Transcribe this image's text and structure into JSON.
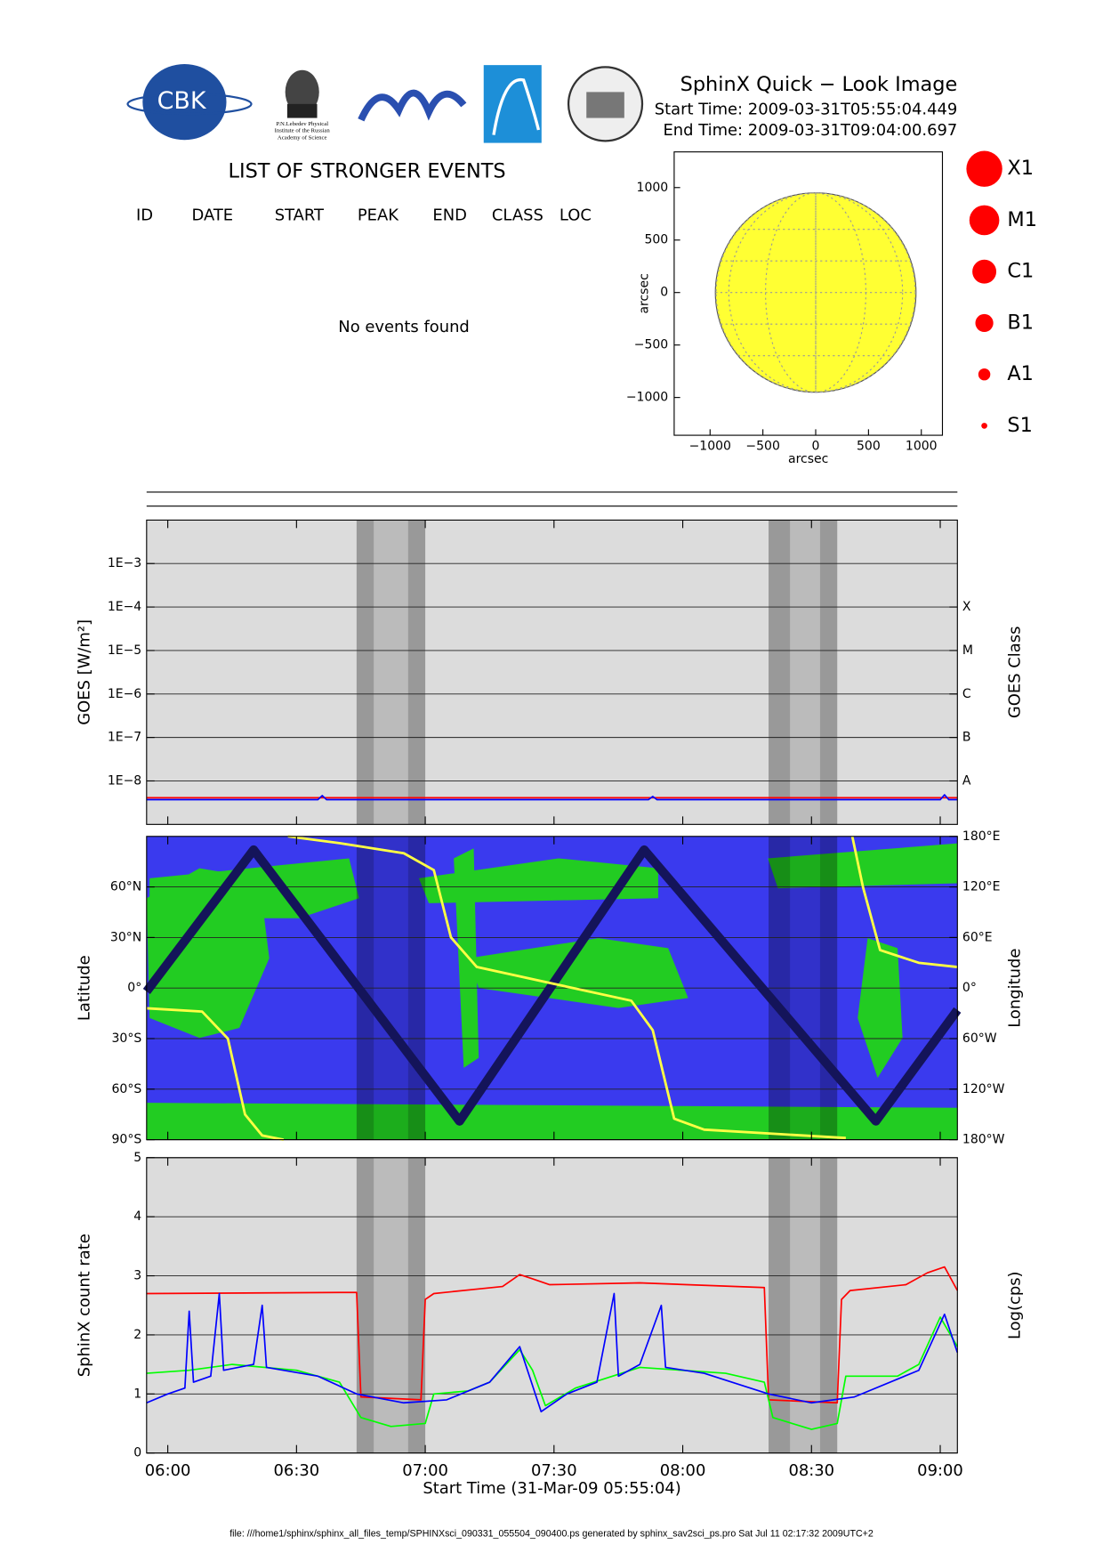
{
  "header": {
    "title": "SphinX Quick − Look Image",
    "start_time": "Start Time: 2009-03-31T05:55:04.449",
    "end_time": "End Time: 2009-03-31T09:04:00.697"
  },
  "logos": {
    "cbk": "CBK",
    "lebedev": [
      "P.N.Lebedev Physical",
      "Institute of the Russian",
      "Academy of Science"
    ]
  },
  "events": {
    "title": "LIST OF STRONGER EVENTS",
    "columns": [
      "ID",
      "DATE",
      "START",
      "PEAK",
      "END",
      "CLASS",
      "LOC"
    ],
    "message": "No events found"
  },
  "bands": [
    {
      "start": "06:44",
      "end": "06:48",
      "shade": "dark"
    },
    {
      "start": "06:48",
      "end": "06:56",
      "shade": "light"
    },
    {
      "start": "06:56",
      "end": "07:00",
      "shade": "dark"
    },
    {
      "start": "08:20",
      "end": "08:25",
      "shade": "dark"
    },
    {
      "start": "08:25",
      "end": "08:32",
      "shade": "light"
    },
    {
      "start": "08:32",
      "end": "08:36",
      "shade": "dark"
    }
  ],
  "chart_data": [
    {
      "type": "disk",
      "xlabel": "arcsec",
      "ylabel": "arcsec",
      "radius": 950,
      "color": "#ffff33",
      "xlim": [
        -1340,
        1200
      ],
      "ylim": [
        -1360,
        1340
      ],
      "xticks": [
        {
          "value": -1000,
          "label": "−1000"
        },
        {
          "value": -500,
          "label": "−500"
        },
        0,
        500,
        1000
      ],
      "yticks": [
        {
          "value": -1000,
          "label": "−1000"
        },
        {
          "value": -500,
          "label": "−500"
        },
        0,
        500,
        1000
      ],
      "legend": {
        "classes": [
          "X1",
          "M1",
          "C1",
          "B1",
          "A1",
          "S1"
        ],
        "color": "#ff0000"
      }
    },
    {
      "type": "line",
      "ylabel": "GOES [W/m²]",
      "y2label": "GOES Class",
      "log": true,
      "grid": true,
      "background": "#dcdcdc",
      "xlim": [
        "05:55:04",
        "09:04:00"
      ],
      "ylim": [
        1e-09,
        0.01
      ],
      "y2lim": [
        1e-09,
        0.01
      ],
      "yticks": [
        {
          "value": 0.001,
          "label": "1E−3"
        },
        {
          "value": 0.0001,
          "label": "1E−4"
        },
        {
          "value": 1e-05,
          "label": "1E−5"
        },
        {
          "value": 1e-06,
          "label": "1E−6"
        },
        {
          "value": 1e-07,
          "label": "1E−7"
        },
        {
          "value": 1e-08,
          "label": "1E−8"
        }
      ],
      "y2ticks": [
        {
          "value": 0.0001,
          "label": "X"
        },
        {
          "value": 1e-05,
          "label": "M"
        },
        {
          "value": 1e-06,
          "label": "C"
        },
        {
          "value": 1e-07,
          "label": "B"
        },
        {
          "value": 1e-08,
          "label": "A"
        }
      ],
      "series": [
        {
          "color": "#ff0000",
          "x": [
            "05:55:04",
            "09:04:00"
          ],
          "values": [
            4.1e-09,
            4.1e-09
          ]
        },
        {
          "color": "#0000ff",
          "x": [
            "05:55:04",
            "06:35",
            "06:36",
            "06:37",
            "07:52",
            "07:53",
            "07:54",
            "09:00",
            "09:01",
            "09:02",
            "09:04:00"
          ],
          "values": [
            3.7e-09,
            3.7e-09,
            4.6e-09,
            3.7e-09,
            3.7e-09,
            4.4e-09,
            3.7e-09,
            3.7e-09,
            4.8e-09,
            3.7e-09,
            3.7e-09
          ]
        }
      ]
    },
    {
      "type": "line",
      "ylabel": "Latitude",
      "y2label": "Longitude",
      "grid": true,
      "background": "#3a3aee",
      "xlim": [
        "05:55:04",
        "09:04:00"
      ],
      "ylim": [
        -90,
        90
      ],
      "y2lim": [
        -180,
        180
      ],
      "yticks": [
        {
          "value": -90,
          "label": "90°S"
        },
        {
          "value": -60,
          "label": "60°S"
        },
        {
          "value": -30,
          "label": "30°S"
        },
        {
          "value": 0,
          "label": "0°"
        },
        {
          "value": 30,
          "label": "30°N"
        },
        {
          "value": 60,
          "label": "60°N"
        }
      ],
      "y2ticks": [
        {
          "value": -180,
          "label": "180°W"
        },
        {
          "value": -120,
          "label": "120°W"
        },
        {
          "value": -60,
          "label": "60°W"
        },
        {
          "value": 0,
          "label": "0°"
        },
        {
          "value": 60,
          "label": "60°E"
        },
        {
          "value": 120,
          "label": "120°E"
        },
        {
          "value": 180,
          "label": "180°E"
        }
      ],
      "series": [
        {
          "color": "#14145a",
          "x": [
            "05:55:04",
            "06:20",
            "07:08",
            "07:51",
            "08:45",
            "09:04:00"
          ],
          "values": [
            -2,
            82,
            -79,
            82,
            -79,
            -13
          ]
        },
        {
          "color": "#ffff44",
          "axis": "y2",
          "x": [
            "05:55:04",
            "06:08",
            "06:14",
            "06:18",
            "06:22",
            "06:27",
            "06:27:30",
            "06:28",
            "06:40",
            "06:55",
            "07:02",
            "07:06",
            "07:12",
            "07:30",
            "07:48",
            "07:53",
            "07:58",
            "08:05",
            "08:38",
            "08:39",
            "08:39:30",
            "08:42",
            "08:46",
            "08:55",
            "09:04:00"
          ],
          "values": [
            -24,
            -28,
            -60,
            -150,
            -175,
            -180,
            null,
            180,
            172,
            160,
            140,
            60,
            25,
            5,
            -15,
            -50,
            -155,
            -168,
            -178,
            null,
            180,
            120,
            45,
            30,
            25
          ]
        }
      ]
    },
    {
      "type": "line",
      "ylabel": "SphinX count rate",
      "y2label": "Log(cps)",
      "xlabel": "Start Time (31-Mar-09 05:55:04)",
      "grid": true,
      "background": "#dcdcdc",
      "xlim": [
        "05:55:04",
        "09:04:00"
      ],
      "ylim": [
        0,
        5
      ],
      "yticks": [
        0,
        1,
        2,
        3,
        4,
        5
      ],
      "xticks": [
        "06:00",
        "06:30",
        "07:00",
        "07:30",
        "08:00",
        "08:30",
        "09:00"
      ],
      "series": [
        {
          "color": "#ff0000",
          "x": [
            "05:55:04",
            "06:44",
            "06:45",
            "06:59",
            "07:00",
            "07:02",
            "07:18",
            "07:22",
            "07:25",
            "07:29",
            "07:50",
            "08:19",
            "08:20",
            "08:36",
            "08:37",
            "08:39",
            "08:52",
            "08:57",
            "09:01",
            "09:04:00"
          ],
          "values": [
            2.7,
            2.72,
            0.95,
            0.9,
            2.6,
            2.7,
            2.82,
            3.02,
            2.95,
            2.85,
            2.88,
            2.8,
            0.9,
            0.85,
            2.6,
            2.75,
            2.85,
            3.05,
            3.15,
            2.75
          ]
        },
        {
          "color": "#00ff00",
          "x": [
            "05:55:04",
            "06:05",
            "06:15",
            "06:30",
            "06:40",
            "06:45",
            "06:52",
            "07:00",
            "07:02",
            "07:10",
            "07:15",
            "07:22",
            "07:25",
            "07:28",
            "07:35",
            "07:50",
            "08:10",
            "08:19",
            "08:21",
            "08:30",
            "08:36",
            "08:38",
            "08:50",
            "08:55",
            "09:00",
            "09:04:00"
          ],
          "values": [
            1.35,
            1.4,
            1.5,
            1.4,
            1.2,
            0.6,
            0.45,
            0.5,
            1.0,
            1.05,
            1.2,
            1.75,
            1.4,
            0.8,
            1.1,
            1.45,
            1.35,
            1.2,
            0.6,
            0.4,
            0.5,
            1.3,
            1.3,
            1.5,
            2.3,
            1.8
          ]
        },
        {
          "color": "#0000ff",
          "x": [
            "05:55:04",
            "06:00",
            "06:04",
            "06:05",
            "06:06",
            "06:10",
            "06:12",
            "06:13",
            "06:20",
            "06:22",
            "06:23",
            "06:35",
            "06:44",
            "06:55",
            "07:05",
            "07:15",
            "07:22",
            "07:27",
            "07:33",
            "07:40",
            "07:44",
            "07:45",
            "07:50",
            "07:55",
            "07:56",
            "08:05",
            "08:20",
            "08:30",
            "08:40",
            "08:55",
            "09:01",
            "09:04:00"
          ],
          "values": [
            0.85,
            1.0,
            1.1,
            2.4,
            1.2,
            1.3,
            2.7,
            1.4,
            1.5,
            2.5,
            1.45,
            1.3,
            1.0,
            0.85,
            0.9,
            1.2,
            1.8,
            0.7,
            1.0,
            1.2,
            2.7,
            1.3,
            1.5,
            2.5,
            1.45,
            1.35,
            1.0,
            0.85,
            0.95,
            1.4,
            2.35,
            1.7
          ]
        }
      ]
    }
  ],
  "footer": "file: ///home1/sphinx/sphinx_all_files_temp/SPHINXsci_090331_055504_090400.ps generated by sphinx_sav2sci_ps.pro Sat Jul 11 02:17:32 2009UTC+2"
}
